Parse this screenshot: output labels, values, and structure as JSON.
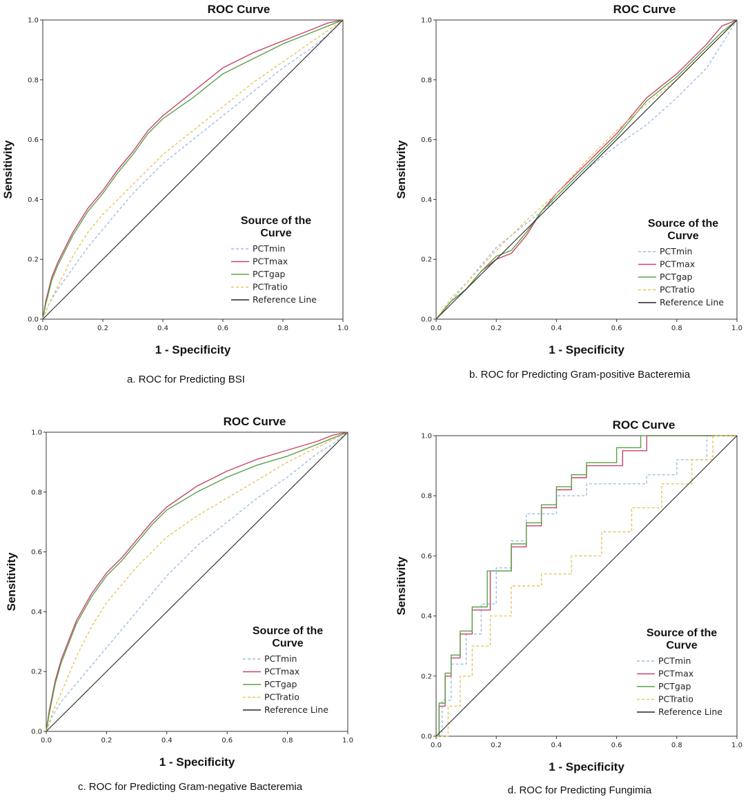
{
  "chart_data": [
    {
      "type": "line",
      "title": "ROC Curve",
      "caption": "a. ROC for Predicting BSI",
      "xlabel": "1 - Specificity",
      "ylabel": "Sensitivity",
      "xlim": [
        0,
        1
      ],
      "ylim": [
        0,
        1
      ],
      "xticks": [
        "0.0",
        "0.2",
        "0.4",
        "0.6",
        "0.8",
        "1.0"
      ],
      "yticks": [
        "0.0",
        "0.2",
        "0.4",
        "0.6",
        "0.8",
        "1.0"
      ],
      "legend_title": [
        "Source of the",
        "Curve"
      ],
      "series": [
        {
          "name": "PCTmin",
          "color": "#9dbcea",
          "dash": "dashed",
          "x": [
            0,
            0.02,
            0.05,
            0.1,
            0.15,
            0.2,
            0.3,
            0.4,
            0.5,
            0.6,
            0.7,
            0.8,
            0.9,
            0.95,
            1
          ],
          "y": [
            0,
            0.05,
            0.1,
            0.17,
            0.24,
            0.3,
            0.42,
            0.52,
            0.6,
            0.68,
            0.76,
            0.84,
            0.91,
            0.95,
            1
          ]
        },
        {
          "name": "PCTmax",
          "color": "#c8426a",
          "dash": "solid",
          "x": [
            0,
            0.01,
            0.03,
            0.05,
            0.1,
            0.15,
            0.2,
            0.25,
            0.3,
            0.35,
            0.4,
            0.5,
            0.6,
            0.7,
            0.8,
            0.9,
            0.95,
            1
          ],
          "y": [
            0,
            0.06,
            0.14,
            0.19,
            0.29,
            0.37,
            0.43,
            0.5,
            0.56,
            0.63,
            0.68,
            0.76,
            0.84,
            0.89,
            0.93,
            0.97,
            0.99,
            1
          ]
        },
        {
          "name": "PCTgap",
          "color": "#5aa146",
          "dash": "solid",
          "x": [
            0,
            0.01,
            0.03,
            0.05,
            0.1,
            0.15,
            0.2,
            0.25,
            0.3,
            0.35,
            0.4,
            0.5,
            0.6,
            0.7,
            0.8,
            0.9,
            0.95,
            1
          ],
          "y": [
            0,
            0.05,
            0.13,
            0.18,
            0.28,
            0.36,
            0.42,
            0.49,
            0.55,
            0.62,
            0.67,
            0.74,
            0.82,
            0.87,
            0.92,
            0.96,
            0.98,
            1
          ]
        },
        {
          "name": "PCTratio",
          "color": "#e9c25a",
          "dash": "dashed",
          "x": [
            0,
            0.02,
            0.05,
            0.1,
            0.15,
            0.2,
            0.3,
            0.4,
            0.5,
            0.6,
            0.7,
            0.8,
            0.9,
            1
          ],
          "y": [
            0,
            0.05,
            0.11,
            0.21,
            0.29,
            0.35,
            0.45,
            0.55,
            0.63,
            0.71,
            0.79,
            0.86,
            0.93,
            1
          ]
        },
        {
          "name": "Reference Line",
          "color": "#222222",
          "dash": "solid",
          "x": [
            0,
            1
          ],
          "y": [
            0,
            1
          ]
        }
      ]
    },
    {
      "type": "line",
      "title": "ROC Curve",
      "caption": "b. ROC for Predicting Gram-positive Bacteremia",
      "xlabel": "1 - Specificity",
      "ylabel": "Sensitivity",
      "xlim": [
        0,
        1
      ],
      "ylim": [
        0,
        1
      ],
      "xticks": [
        "0.0",
        "0.2",
        "0.4",
        "0.6",
        "0.8",
        "1.0"
      ],
      "yticks": [
        "0.0",
        "0.2",
        "0.4",
        "0.6",
        "0.8",
        "1.0"
      ],
      "legend_title": [
        "Source of the",
        "Curve"
      ],
      "series": [
        {
          "name": "PCTmin",
          "color": "#9dbcea",
          "dash": "dashed",
          "x": [
            0,
            0.05,
            0.1,
            0.2,
            0.3,
            0.4,
            0.5,
            0.6,
            0.7,
            0.8,
            0.9,
            1
          ],
          "y": [
            0,
            0.06,
            0.12,
            0.24,
            0.32,
            0.4,
            0.5,
            0.58,
            0.65,
            0.74,
            0.84,
            1
          ]
        },
        {
          "name": "PCTmax",
          "color": "#c8426a",
          "dash": "solid",
          "x": [
            0,
            0.05,
            0.1,
            0.15,
            0.2,
            0.25,
            0.3,
            0.35,
            0.4,
            0.5,
            0.6,
            0.7,
            0.8,
            0.9,
            0.95,
            1
          ],
          "y": [
            0,
            0.06,
            0.1,
            0.16,
            0.2,
            0.22,
            0.28,
            0.36,
            0.42,
            0.52,
            0.62,
            0.74,
            0.82,
            0.92,
            0.98,
            1
          ]
        },
        {
          "name": "PCTgap",
          "color": "#5aa146",
          "dash": "solid",
          "x": [
            0,
            0.05,
            0.1,
            0.15,
            0.2,
            0.25,
            0.3,
            0.35,
            0.4,
            0.5,
            0.6,
            0.7,
            0.8,
            0.9,
            0.95,
            1
          ],
          "y": [
            0,
            0.06,
            0.1,
            0.16,
            0.21,
            0.23,
            0.29,
            0.36,
            0.41,
            0.51,
            0.61,
            0.73,
            0.81,
            0.91,
            0.96,
            1
          ]
        },
        {
          "name": "PCTratio",
          "color": "#e9c25a",
          "dash": "dashed",
          "x": [
            0,
            0.05,
            0.1,
            0.2,
            0.3,
            0.4,
            0.5,
            0.6,
            0.7,
            0.8,
            0.9,
            1
          ],
          "y": [
            0,
            0.07,
            0.12,
            0.23,
            0.33,
            0.42,
            0.53,
            0.63,
            0.72,
            0.8,
            0.9,
            1
          ]
        },
        {
          "name": "Reference Line",
          "color": "#222222",
          "dash": "solid",
          "x": [
            0,
            1
          ],
          "y": [
            0,
            1
          ]
        }
      ]
    },
    {
      "type": "line",
      "title": "ROC Curve",
      "caption": "c. ROC for Predicting Gram-negative Bacteremia",
      "xlabel": "1 - Specificity",
      "ylabel": "Sensitivity",
      "xlim": [
        0,
        1
      ],
      "ylim": [
        0,
        1
      ],
      "xticks": [
        "0.0",
        "0.2",
        "0.4",
        "0.6",
        "0.8",
        "1.0"
      ],
      "yticks": [
        "0.0",
        "0.2",
        "0.4",
        "0.6",
        "0.8",
        "1.0"
      ],
      "legend_title": [
        "Source of the",
        "Curve"
      ],
      "series": [
        {
          "name": "PCTmin",
          "color": "#9dbcea",
          "dash": "dashed",
          "x": [
            0,
            0.02,
            0.05,
            0.1,
            0.15,
            0.2,
            0.3,
            0.4,
            0.5,
            0.6,
            0.7,
            0.8,
            0.9,
            0.95,
            1
          ],
          "y": [
            0,
            0.05,
            0.1,
            0.16,
            0.22,
            0.28,
            0.4,
            0.52,
            0.62,
            0.7,
            0.78,
            0.85,
            0.93,
            0.96,
            1
          ]
        },
        {
          "name": "PCTmax",
          "color": "#c8426a",
          "dash": "solid",
          "x": [
            0,
            0.01,
            0.03,
            0.05,
            0.1,
            0.15,
            0.2,
            0.25,
            0.3,
            0.35,
            0.4,
            0.5,
            0.6,
            0.7,
            0.8,
            0.9,
            0.95,
            1
          ],
          "y": [
            0,
            0.07,
            0.17,
            0.24,
            0.37,
            0.46,
            0.53,
            0.58,
            0.64,
            0.7,
            0.75,
            0.82,
            0.87,
            0.91,
            0.94,
            0.97,
            0.99,
            1
          ]
        },
        {
          "name": "PCTgap",
          "color": "#5aa146",
          "dash": "solid",
          "x": [
            0,
            0.01,
            0.03,
            0.05,
            0.1,
            0.15,
            0.2,
            0.25,
            0.3,
            0.35,
            0.4,
            0.5,
            0.6,
            0.7,
            0.8,
            0.9,
            0.95,
            1
          ],
          "y": [
            0,
            0.06,
            0.16,
            0.23,
            0.36,
            0.45,
            0.52,
            0.57,
            0.63,
            0.69,
            0.74,
            0.8,
            0.85,
            0.89,
            0.92,
            0.96,
            0.98,
            1
          ]
        },
        {
          "name": "PCTratio",
          "color": "#e9c25a",
          "dash": "dashed",
          "x": [
            0,
            0.02,
            0.05,
            0.1,
            0.15,
            0.2,
            0.3,
            0.4,
            0.5,
            0.6,
            0.7,
            0.8,
            0.9,
            1
          ],
          "y": [
            0,
            0.06,
            0.13,
            0.25,
            0.35,
            0.43,
            0.55,
            0.65,
            0.72,
            0.78,
            0.84,
            0.9,
            0.95,
            1
          ]
        },
        {
          "name": "Reference Line",
          "color": "#222222",
          "dash": "solid",
          "x": [
            0,
            1
          ],
          "y": [
            0,
            1
          ]
        }
      ]
    },
    {
      "type": "line",
      "title": "ROC Curve",
      "caption": "d. ROC for Predicting Fungimia",
      "xlabel": "1 - Specificity",
      "ylabel": "Sensitivity",
      "xlim": [
        0,
        1
      ],
      "ylim": [
        0,
        1
      ],
      "xticks": [
        "0.0",
        "0.2",
        "0.4",
        "0.6",
        "0.8",
        "1.0"
      ],
      "yticks": [
        "0.0",
        "0.2",
        "0.4",
        "0.6",
        "0.8",
        "1.0"
      ],
      "legend_title": [
        "Source of the",
        "Curve"
      ],
      "series": [
        {
          "name": "PCTmin",
          "color": "#9dbcea",
          "dash": "dashed",
          "x": [
            0,
            0.02,
            0.02,
            0.05,
            0.05,
            0.1,
            0.1,
            0.15,
            0.15,
            0.2,
            0.2,
            0.25,
            0.25,
            0.3,
            0.3,
            0.4,
            0.4,
            0.5,
            0.5,
            0.7,
            0.7,
            0.8,
            0.8,
            0.9,
            0.9,
            1
          ],
          "y": [
            0,
            0,
            0.12,
            0.12,
            0.24,
            0.24,
            0.34,
            0.34,
            0.44,
            0.44,
            0.56,
            0.56,
            0.65,
            0.65,
            0.74,
            0.74,
            0.8,
            0.8,
            0.84,
            0.84,
            0.87,
            0.87,
            0.92,
            0.92,
            1,
            1
          ]
        },
        {
          "name": "PCTmax",
          "color": "#c8426a",
          "dash": "solid",
          "x": [
            0,
            0.01,
            0.01,
            0.03,
            0.03,
            0.05,
            0.05,
            0.08,
            0.08,
            0.12,
            0.12,
            0.18,
            0.18,
            0.25,
            0.25,
            0.3,
            0.3,
            0.35,
            0.35,
            0.4,
            0.4,
            0.45,
            0.45,
            0.5,
            0.5,
            0.62,
            0.62,
            0.7,
            0.7,
            1
          ],
          "y": [
            0,
            0,
            0.1,
            0.1,
            0.2,
            0.2,
            0.26,
            0.26,
            0.34,
            0.34,
            0.42,
            0.42,
            0.55,
            0.55,
            0.63,
            0.63,
            0.7,
            0.7,
            0.76,
            0.76,
            0.82,
            0.82,
            0.86,
            0.86,
            0.9,
            0.9,
            0.95,
            0.95,
            1,
            1
          ]
        },
        {
          "name": "PCTgap",
          "color": "#5aa146",
          "dash": "solid",
          "x": [
            0,
            0.01,
            0.01,
            0.03,
            0.03,
            0.05,
            0.05,
            0.08,
            0.08,
            0.12,
            0.12,
            0.17,
            0.17,
            0.25,
            0.25,
            0.3,
            0.3,
            0.35,
            0.35,
            0.4,
            0.4,
            0.45,
            0.45,
            0.5,
            0.5,
            0.6,
            0.6,
            0.68,
            0.68,
            1
          ],
          "y": [
            0,
            0,
            0.11,
            0.11,
            0.21,
            0.21,
            0.27,
            0.27,
            0.35,
            0.35,
            0.43,
            0.43,
            0.55,
            0.55,
            0.64,
            0.64,
            0.71,
            0.71,
            0.77,
            0.77,
            0.83,
            0.83,
            0.87,
            0.87,
            0.91,
            0.91,
            0.96,
            0.96,
            1,
            1
          ]
        },
        {
          "name": "PCTratio",
          "color": "#e9c25a",
          "dash": "dashed",
          "x": [
            0,
            0.04,
            0.04,
            0.08,
            0.08,
            0.12,
            0.12,
            0.18,
            0.18,
            0.25,
            0.25,
            0.35,
            0.35,
            0.45,
            0.45,
            0.55,
            0.55,
            0.65,
            0.65,
            0.75,
            0.75,
            0.85,
            0.85,
            0.92,
            0.92,
            1
          ],
          "y": [
            0,
            0,
            0.1,
            0.1,
            0.2,
            0.2,
            0.3,
            0.3,
            0.4,
            0.4,
            0.5,
            0.5,
            0.54,
            0.54,
            0.6,
            0.6,
            0.68,
            0.68,
            0.76,
            0.76,
            0.84,
            0.84,
            0.92,
            0.92,
            1,
            1
          ]
        },
        {
          "name": "Reference Line",
          "color": "#222222",
          "dash": "solid",
          "x": [
            0,
            1
          ],
          "y": [
            0,
            1
          ]
        }
      ]
    }
  ]
}
